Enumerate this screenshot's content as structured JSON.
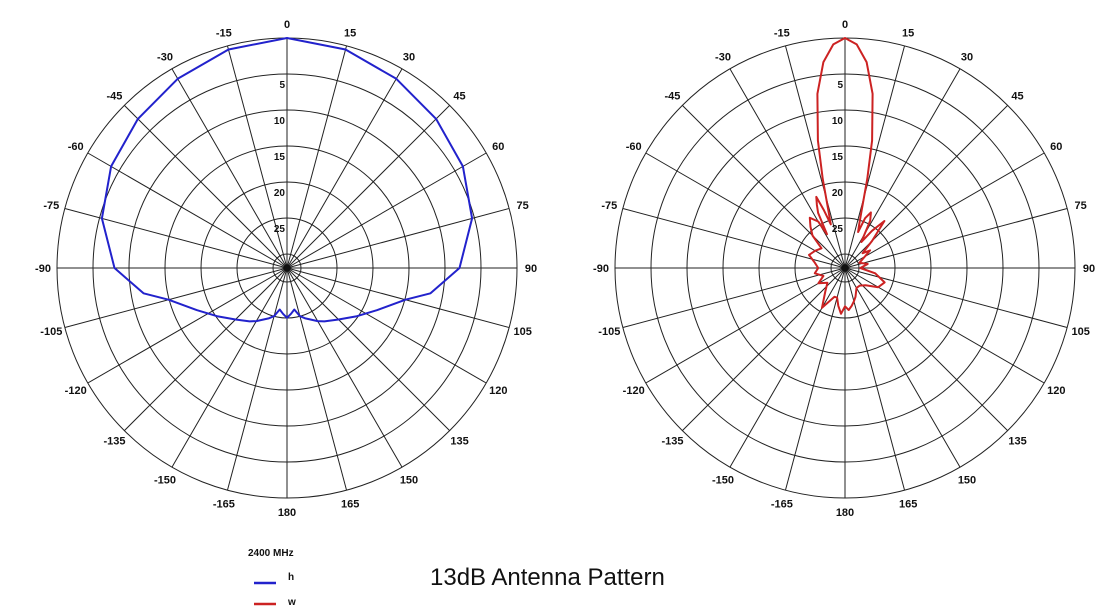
{
  "chart_data": [
    {
      "type": "polar-line",
      "series_key": "h",
      "angle_labels": [
        "0",
        "15",
        "30",
        "45",
        "60",
        "75",
        "90",
        "105",
        "120",
        "135",
        "150",
        "165",
        "180",
        "-165",
        "-150",
        "-135",
        "-120",
        "-105",
        "-90",
        "-75",
        "-60",
        "-45",
        "-30",
        "-15"
      ],
      "radial_labels": [
        "5",
        "10",
        "15",
        "20",
        "25"
      ],
      "radial_range_db": [
        -30,
        0
      ],
      "grid": true,
      "series": [
        {
          "name": "h",
          "color": "#2222cc",
          "angles_deg": [
            0,
            15,
            30,
            45,
            60,
            75,
            90,
            100,
            105,
            115,
            125,
            135,
            145,
            150,
            160,
            165,
            170,
            175,
            180,
            185,
            190,
            195,
            200,
            210,
            215,
            225,
            235,
            245,
            255,
            260,
            270,
            285,
            300,
            315,
            330,
            345
          ],
          "values_db": [
            0,
            -0.5,
            -1.5,
            -2.5,
            -3.5,
            -5,
            -7.5,
            -11,
            -14,
            -17,
            -19,
            -20.5,
            -21.5,
            -22,
            -23,
            -23.5,
            -24.5,
            -24,
            -23.5,
            -24,
            -24.5,
            -23.5,
            -23,
            -22,
            -21.5,
            -20.5,
            -19,
            -17,
            -14,
            -11,
            -7.5,
            -5,
            -3.5,
            -2.5,
            -1.5,
            -0.5
          ]
        }
      ]
    },
    {
      "type": "polar-line",
      "series_key": "w",
      "angle_labels": [
        "0",
        "15",
        "30",
        "45",
        "60",
        "75",
        "90",
        "105",
        "120",
        "135",
        "150",
        "165",
        "180",
        "-165",
        "-150",
        "-135",
        "-120",
        "-105",
        "-90",
        "-75",
        "-60",
        "-45",
        "-30",
        "-15"
      ],
      "radial_labels": [
        "5",
        "10",
        "15",
        "20",
        "25"
      ],
      "radial_range_db": [
        -30,
        0
      ],
      "grid": true,
      "series": [
        {
          "name": "w",
          "color": "#cc2222",
          "angles_deg": [
            0,
            3,
            6,
            9,
            12,
            14,
            16,
            18,
            20,
            22,
            25,
            28,
            32,
            36,
            40,
            45,
            50,
            55,
            60,
            70,
            80,
            90,
            100,
            110,
            120,
            130,
            140,
            150,
            160,
            165,
            170,
            175,
            180,
            185,
            190,
            195,
            200,
            210,
            220,
            230,
            240,
            250,
            260,
            270,
            280,
            290,
            300,
            310,
            315,
            320,
            325,
            330,
            332,
            334,
            336,
            338,
            340,
            342,
            344,
            346,
            348,
            351,
            354,
            357
          ],
          "values_db": [
            0,
            -0.8,
            -3,
            -7,
            -13,
            -18,
            -22,
            -24,
            -25,
            -23,
            -22,
            -23,
            -26,
            -24,
            -22,
            -25,
            -27,
            -26,
            -27,
            -28,
            -27,
            -28,
            -26,
            -24.5,
            -25,
            -26.5,
            -27,
            -27,
            -26,
            -25.5,
            -25,
            -24.5,
            -25,
            -24,
            -25,
            -26,
            -26,
            -24,
            -26,
            -27,
            -26,
            -27,
            -26,
            -26.5,
            -26,
            -25,
            -25.5,
            -26,
            -24,
            -23,
            -22,
            -23,
            -25,
            -22,
            -21,
            -20,
            -22,
            -24,
            -22,
            -18,
            -13,
            -7,
            -3,
            -0.8
          ]
        }
      ]
    }
  ],
  "legend": {
    "title": "2400 MHz",
    "items": [
      {
        "label": "h",
        "color": "#2222cc"
      },
      {
        "label": "w",
        "color": "#cc2222"
      }
    ]
  },
  "title": "13dB Antenna Pattern"
}
